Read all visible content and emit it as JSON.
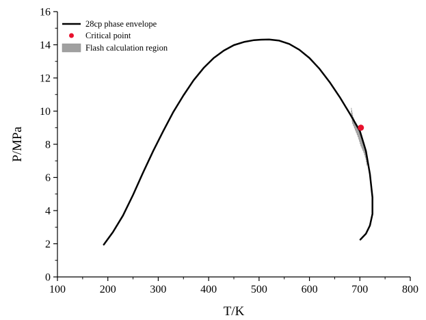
{
  "chart_data": {
    "type": "line",
    "xlabel": "T/K",
    "ylabel": "P/MPa",
    "xlim": [
      100,
      800
    ],
    "ylim": [
      0,
      16
    ],
    "x_ticks": [
      100,
      200,
      300,
      400,
      500,
      600,
      700,
      800
    ],
    "y_ticks": [
      0,
      2,
      4,
      6,
      8,
      10,
      12,
      14,
      16
    ],
    "x_tick_labels": [
      "100",
      "200",
      "300",
      "400",
      "500",
      "600",
      "700",
      "800"
    ],
    "y_tick_labels": [
      "0",
      "2",
      "4",
      "6",
      "8",
      "10",
      "12",
      "14",
      "16"
    ],
    "grid": false,
    "legend_position": "top-left",
    "legend": {
      "envelope": "28cp phase envelope",
      "critical": "Critical point",
      "flash": "Flash calculation region"
    },
    "series": [
      {
        "name": "28cp phase envelope",
        "kind": "line",
        "color": "#000000",
        "points": [
          [
            192,
            1.95
          ],
          [
            210,
            2.7
          ],
          [
            230,
            3.7
          ],
          [
            250,
            4.95
          ],
          [
            270,
            6.3
          ],
          [
            290,
            7.6
          ],
          [
            310,
            8.8
          ],
          [
            330,
            9.95
          ],
          [
            350,
            10.95
          ],
          [
            370,
            11.85
          ],
          [
            390,
            12.6
          ],
          [
            410,
            13.2
          ],
          [
            430,
            13.65
          ],
          [
            450,
            13.98
          ],
          [
            470,
            14.17
          ],
          [
            490,
            14.28
          ],
          [
            505,
            14.31
          ],
          [
            520,
            14.32
          ],
          [
            540,
            14.25
          ],
          [
            560,
            14.05
          ],
          [
            580,
            13.7
          ],
          [
            600,
            13.2
          ],
          [
            620,
            12.55
          ],
          [
            640,
            11.75
          ],
          [
            660,
            10.85
          ],
          [
            680,
            9.85
          ],
          [
            700,
            8.8
          ],
          [
            712,
            7.6
          ],
          [
            720,
            6.2
          ],
          [
            725,
            4.8
          ],
          [
            725,
            3.8
          ],
          [
            720,
            3.1
          ],
          [
            712,
            2.6
          ],
          [
            701,
            2.25
          ]
        ]
      },
      {
        "name": "Critical point",
        "kind": "point",
        "color": "#e8112d",
        "points": [
          [
            702,
            9.0
          ]
        ]
      },
      {
        "name": "Flash calculation region",
        "kind": "area",
        "color": "#a0a0a0",
        "points": [
          [
            683,
            10.2
          ],
          [
            686,
            9.7
          ],
          [
            692,
            9.25
          ],
          [
            699,
            8.85
          ],
          [
            705,
            8.4
          ],
          [
            710,
            7.9
          ],
          [
            714,
            7.4
          ],
          [
            716,
            7.0
          ],
          [
            714,
            6.7
          ],
          [
            712,
            7.1
          ],
          [
            708,
            7.5
          ],
          [
            702,
            7.9
          ],
          [
            697,
            8.4
          ],
          [
            691,
            8.85
          ],
          [
            685,
            9.3
          ],
          [
            683,
            9.8
          ]
        ]
      }
    ]
  }
}
